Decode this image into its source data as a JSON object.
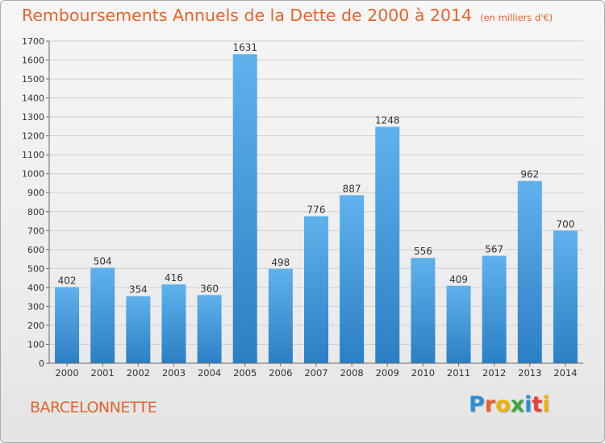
{
  "title": {
    "main": "Remboursements Annuels de la Dette de 2000 à 2014",
    "unit": "(en milliers d'€)"
  },
  "city": "BARCELONNETTE",
  "logo": {
    "text": "Proxiti",
    "letter_colors": [
      "#2a8fd6",
      "#e8632c",
      "#f0b400",
      "#3aa63a",
      "#2a8fd6",
      "#e84040",
      "#f0b400"
    ]
  },
  "colors": {
    "bar_light": "#5fb2ec",
    "bar_dark": "#2b7fc4",
    "accent": "#e8632c",
    "grid": "#d0d0d0"
  },
  "chart_data": {
    "type": "bar",
    "title": "Remboursements Annuels de la Dette de 2000 à 2014",
    "ylabel": "en milliers d'€",
    "xlabel": "",
    "ylim": [
      0,
      1700
    ],
    "y_ticks": [
      0,
      100,
      200,
      300,
      400,
      500,
      600,
      700,
      800,
      900,
      1000,
      1100,
      1200,
      1300,
      1400,
      1500,
      1600,
      1700
    ],
    "categories": [
      "2000",
      "2001",
      "2002",
      "2003",
      "2004",
      "2005",
      "2006",
      "2007",
      "2008",
      "2009",
      "2010",
      "2011",
      "2012",
      "2013",
      "2014"
    ],
    "values": [
      402,
      504,
      354,
      416,
      360,
      1631,
      498,
      776,
      887,
      1248,
      556,
      409,
      567,
      962,
      700
    ],
    "grid": true
  }
}
